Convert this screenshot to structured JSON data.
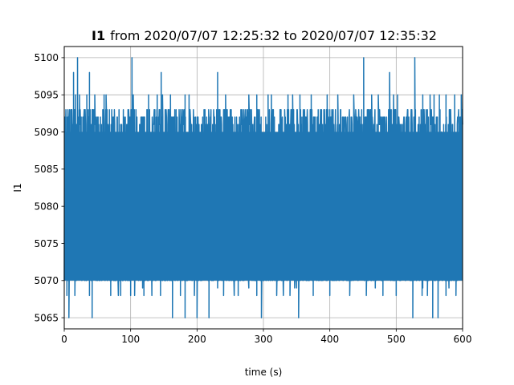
{
  "chart_data": {
    "type": "line",
    "title_bold": "I1",
    "title_rest": "from 2020/07/07 12:25:32 to 2020/07/07 12:35:32",
    "xlabel": "time (s)",
    "ylabel": "I1",
    "xlim": [
      0,
      600
    ],
    "ylim": [
      5063.5,
      5101.5
    ],
    "xticks": [
      0,
      100,
      200,
      300,
      400,
      500,
      600
    ],
    "yticks": [
      5065,
      5070,
      5075,
      5080,
      5085,
      5090,
      5095,
      5100
    ],
    "grid": true,
    "legend": "none",
    "color": "#1f77b4",
    "series": [
      {
        "sample_interval_s": 0.5,
        "band_upper": 5093,
        "band_lower": 5068,
        "max": 5100,
        "min": 5065,
        "peaks": [
          {
            "x": 8,
            "y": 5093
          },
          {
            "x": 14,
            "y": 5098
          },
          {
            "x": 17,
            "y": 5095
          },
          {
            "x": 20,
            "y": 5100
          },
          {
            "x": 23,
            "y": 5095
          },
          {
            "x": 34,
            "y": 5095
          },
          {
            "x": 38,
            "y": 5098
          },
          {
            "x": 46,
            "y": 5095
          },
          {
            "x": 60,
            "y": 5095
          },
          {
            "x": 63,
            "y": 5095
          },
          {
            "x": 102,
            "y": 5100
          },
          {
            "x": 104,
            "y": 5095
          },
          {
            "x": 127,
            "y": 5095
          },
          {
            "x": 140,
            "y": 5095
          },
          {
            "x": 146,
            "y": 5098
          },
          {
            "x": 148,
            "y": 5095
          },
          {
            "x": 160,
            "y": 5095
          },
          {
            "x": 182,
            "y": 5095
          },
          {
            "x": 188,
            "y": 5095
          },
          {
            "x": 231,
            "y": 5098
          },
          {
            "x": 243,
            "y": 5095
          },
          {
            "x": 278,
            "y": 5095
          },
          {
            "x": 290,
            "y": 5095
          },
          {
            "x": 307,
            "y": 5095
          },
          {
            "x": 312,
            "y": 5095
          },
          {
            "x": 337,
            "y": 5095
          },
          {
            "x": 344,
            "y": 5095
          },
          {
            "x": 355,
            "y": 5095
          },
          {
            "x": 372,
            "y": 5095
          },
          {
            "x": 396,
            "y": 5095
          },
          {
            "x": 412,
            "y": 5095
          },
          {
            "x": 436,
            "y": 5095
          },
          {
            "x": 451,
            "y": 5100
          },
          {
            "x": 463,
            "y": 5095
          },
          {
            "x": 473,
            "y": 5095
          },
          {
            "x": 490,
            "y": 5098
          },
          {
            "x": 496,
            "y": 5095
          },
          {
            "x": 502,
            "y": 5095
          },
          {
            "x": 528,
            "y": 5100
          },
          {
            "x": 540,
            "y": 5095
          },
          {
            "x": 551,
            "y": 5095
          },
          {
            "x": 557,
            "y": 5095
          },
          {
            "x": 565,
            "y": 5095
          },
          {
            "x": 575,
            "y": 5095
          },
          {
            "x": 588,
            "y": 5095
          },
          {
            "x": 598,
            "y": 5095
          }
        ],
        "troughs": [
          {
            "x": 4,
            "y": 5068
          },
          {
            "x": 7,
            "y": 5065
          },
          {
            "x": 16,
            "y": 5068
          },
          {
            "x": 38,
            "y": 5068
          },
          {
            "x": 42,
            "y": 5065
          },
          {
            "x": 70,
            "y": 5068
          },
          {
            "x": 85,
            "y": 5068
          },
          {
            "x": 100,
            "y": 5068
          },
          {
            "x": 120,
            "y": 5068
          },
          {
            "x": 145,
            "y": 5068
          },
          {
            "x": 163,
            "y": 5065
          },
          {
            "x": 175,
            "y": 5068
          },
          {
            "x": 182,
            "y": 5065
          },
          {
            "x": 196,
            "y": 5068
          },
          {
            "x": 200,
            "y": 5065
          },
          {
            "x": 218,
            "y": 5065
          },
          {
            "x": 240,
            "y": 5068
          },
          {
            "x": 262,
            "y": 5068
          },
          {
            "x": 290,
            "y": 5068
          },
          {
            "x": 297,
            "y": 5065
          },
          {
            "x": 320,
            "y": 5068
          },
          {
            "x": 340,
            "y": 5068
          },
          {
            "x": 353,
            "y": 5065
          },
          {
            "x": 375,
            "y": 5068
          },
          {
            "x": 400,
            "y": 5068
          },
          {
            "x": 430,
            "y": 5068
          },
          {
            "x": 455,
            "y": 5068
          },
          {
            "x": 480,
            "y": 5068
          },
          {
            "x": 500,
            "y": 5068
          },
          {
            "x": 525,
            "y": 5065
          },
          {
            "x": 547,
            "y": 5068
          },
          {
            "x": 555,
            "y": 5065
          },
          {
            "x": 563,
            "y": 5065
          },
          {
            "x": 575,
            "y": 5068
          },
          {
            "x": 590,
            "y": 5068
          }
        ]
      }
    ]
  }
}
